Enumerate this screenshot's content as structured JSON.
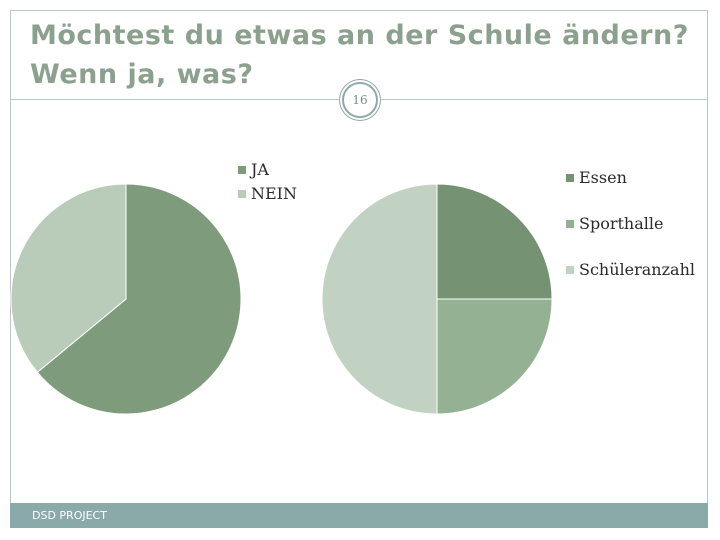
{
  "title": {
    "line1": "Möchtest du etwas an der Schule ändern?",
    "line2": "Wenn ja, was?"
  },
  "slide_number": "16",
  "footer": {
    "label": "DSD PROJECT"
  },
  "colors": {
    "frame": "#b8c8c8",
    "title": "#8ba18e",
    "footer": "#8aa9a9"
  },
  "chart_data": [
    {
      "type": "pie",
      "title": "",
      "legend_position": "right",
      "slices": [
        {
          "label": "JA",
          "value": 64,
          "color": "#7e9b7b"
        },
        {
          "label": "NEIN",
          "value": 36,
          "color": "#b9ccba"
        }
      ]
    },
    {
      "type": "pie",
      "title": "",
      "legend_position": "right",
      "slices": [
        {
          "label": "Essen",
          "value": 25,
          "color": "#759372"
        },
        {
          "label": "Sporthalle",
          "value": 25,
          "color": "#94b293"
        },
        {
          "label": "Schüleranzahl",
          "value": 50,
          "color": "#c1d2c2"
        }
      ]
    }
  ]
}
